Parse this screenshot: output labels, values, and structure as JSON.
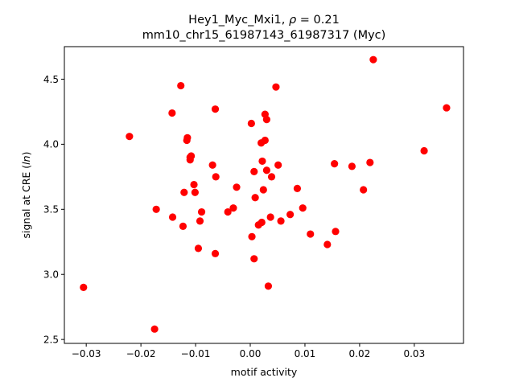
{
  "chart_data": {
    "type": "scatter",
    "title_line1_prefix": "Hey1_Myc_Mxi1, ",
    "title_line1_rho": "ρ",
    "title_line1_suffix": " = 0.21",
    "title_line2": "mm10_chr15_61987143_61987317 (Myc)",
    "xlabel": "motif activity",
    "ylabel_prefix": "signal at CRE (",
    "ylabel_italic": "ln",
    "ylabel_suffix": ")",
    "xlim": [
      -0.034,
      0.039
    ],
    "ylim": [
      2.47,
      4.75
    ],
    "xticks": [
      {
        "value": -0.03,
        "label": "−0.03"
      },
      {
        "value": -0.02,
        "label": "−0.02"
      },
      {
        "value": -0.01,
        "label": "−0.01"
      },
      {
        "value": 0.0,
        "label": "0.00"
      },
      {
        "value": 0.01,
        "label": "0.01"
      },
      {
        "value": 0.02,
        "label": "0.02"
      },
      {
        "value": 0.03,
        "label": "0.03"
      }
    ],
    "yticks": [
      {
        "value": 2.5,
        "label": "2.5"
      },
      {
        "value": 3.0,
        "label": "3.0"
      },
      {
        "value": 3.5,
        "label": "3.5"
      },
      {
        "value": 4.0,
        "label": "4.0"
      },
      {
        "value": 4.5,
        "label": "4.5"
      }
    ],
    "grid": false,
    "marker_color": "#ff0000",
    "points": [
      {
        "x": -0.0305,
        "y": 2.9
      },
      {
        "x": -0.0221,
        "y": 4.06
      },
      {
        "x": -0.0175,
        "y": 2.58
      },
      {
        "x": -0.0172,
        "y": 3.5
      },
      {
        "x": -0.0143,
        "y": 4.24
      },
      {
        "x": -0.0142,
        "y": 3.44
      },
      {
        "x": -0.0127,
        "y": 4.45
      },
      {
        "x": -0.0123,
        "y": 3.37
      },
      {
        "x": -0.0121,
        "y": 3.63
      },
      {
        "x": -0.0116,
        "y": 4.03
      },
      {
        "x": -0.0115,
        "y": 4.05
      },
      {
        "x": -0.011,
        "y": 3.9
      },
      {
        "x": -0.011,
        "y": 3.88
      },
      {
        "x": -0.0108,
        "y": 3.91
      },
      {
        "x": -0.0103,
        "y": 3.69
      },
      {
        "x": -0.0101,
        "y": 3.63
      },
      {
        "x": -0.0095,
        "y": 3.2
      },
      {
        "x": -0.0092,
        "y": 3.41
      },
      {
        "x": -0.0089,
        "y": 3.48
      },
      {
        "x": -0.0069,
        "y": 3.84
      },
      {
        "x": -0.0064,
        "y": 4.27
      },
      {
        "x": -0.0063,
        "y": 3.75
      },
      {
        "x": -0.0064,
        "y": 3.16
      },
      {
        "x": -0.0041,
        "y": 3.48
      },
      {
        "x": -0.0031,
        "y": 3.51
      },
      {
        "x": -0.0025,
        "y": 3.67
      },
      {
        "x": 0.0002,
        "y": 4.16
      },
      {
        "x": 0.0003,
        "y": 3.29
      },
      {
        "x": 0.0007,
        "y": 3.79
      },
      {
        "x": 0.0007,
        "y": 3.12
      },
      {
        "x": 0.0009,
        "y": 3.59
      },
      {
        "x": 0.0015,
        "y": 3.38
      },
      {
        "x": 0.002,
        "y": 4.01
      },
      {
        "x": 0.0021,
        "y": 3.4
      },
      {
        "x": 0.0022,
        "y": 3.87
      },
      {
        "x": 0.0024,
        "y": 3.65
      },
      {
        "x": 0.0027,
        "y": 4.23
      },
      {
        "x": 0.0027,
        "y": 4.03
      },
      {
        "x": 0.003,
        "y": 4.19
      },
      {
        "x": 0.003,
        "y": 3.8
      },
      {
        "x": 0.0033,
        "y": 2.91
      },
      {
        "x": 0.0037,
        "y": 3.44
      },
      {
        "x": 0.0039,
        "y": 3.75
      },
      {
        "x": 0.0047,
        "y": 4.44
      },
      {
        "x": 0.0051,
        "y": 3.84
      },
      {
        "x": 0.0056,
        "y": 3.41
      },
      {
        "x": 0.0073,
        "y": 3.46
      },
      {
        "x": 0.0086,
        "y": 3.66
      },
      {
        "x": 0.0096,
        "y": 3.51
      },
      {
        "x": 0.011,
        "y": 3.31
      },
      {
        "x": 0.0141,
        "y": 3.23
      },
      {
        "x": 0.0154,
        "y": 3.85
      },
      {
        "x": 0.0156,
        "y": 3.33
      },
      {
        "x": 0.0186,
        "y": 3.83
      },
      {
        "x": 0.0207,
        "y": 3.65
      },
      {
        "x": 0.0219,
        "y": 3.86
      },
      {
        "x": 0.0225,
        "y": 4.65
      },
      {
        "x": 0.0318,
        "y": 3.95
      },
      {
        "x": 0.0359,
        "y": 4.28
      }
    ]
  }
}
